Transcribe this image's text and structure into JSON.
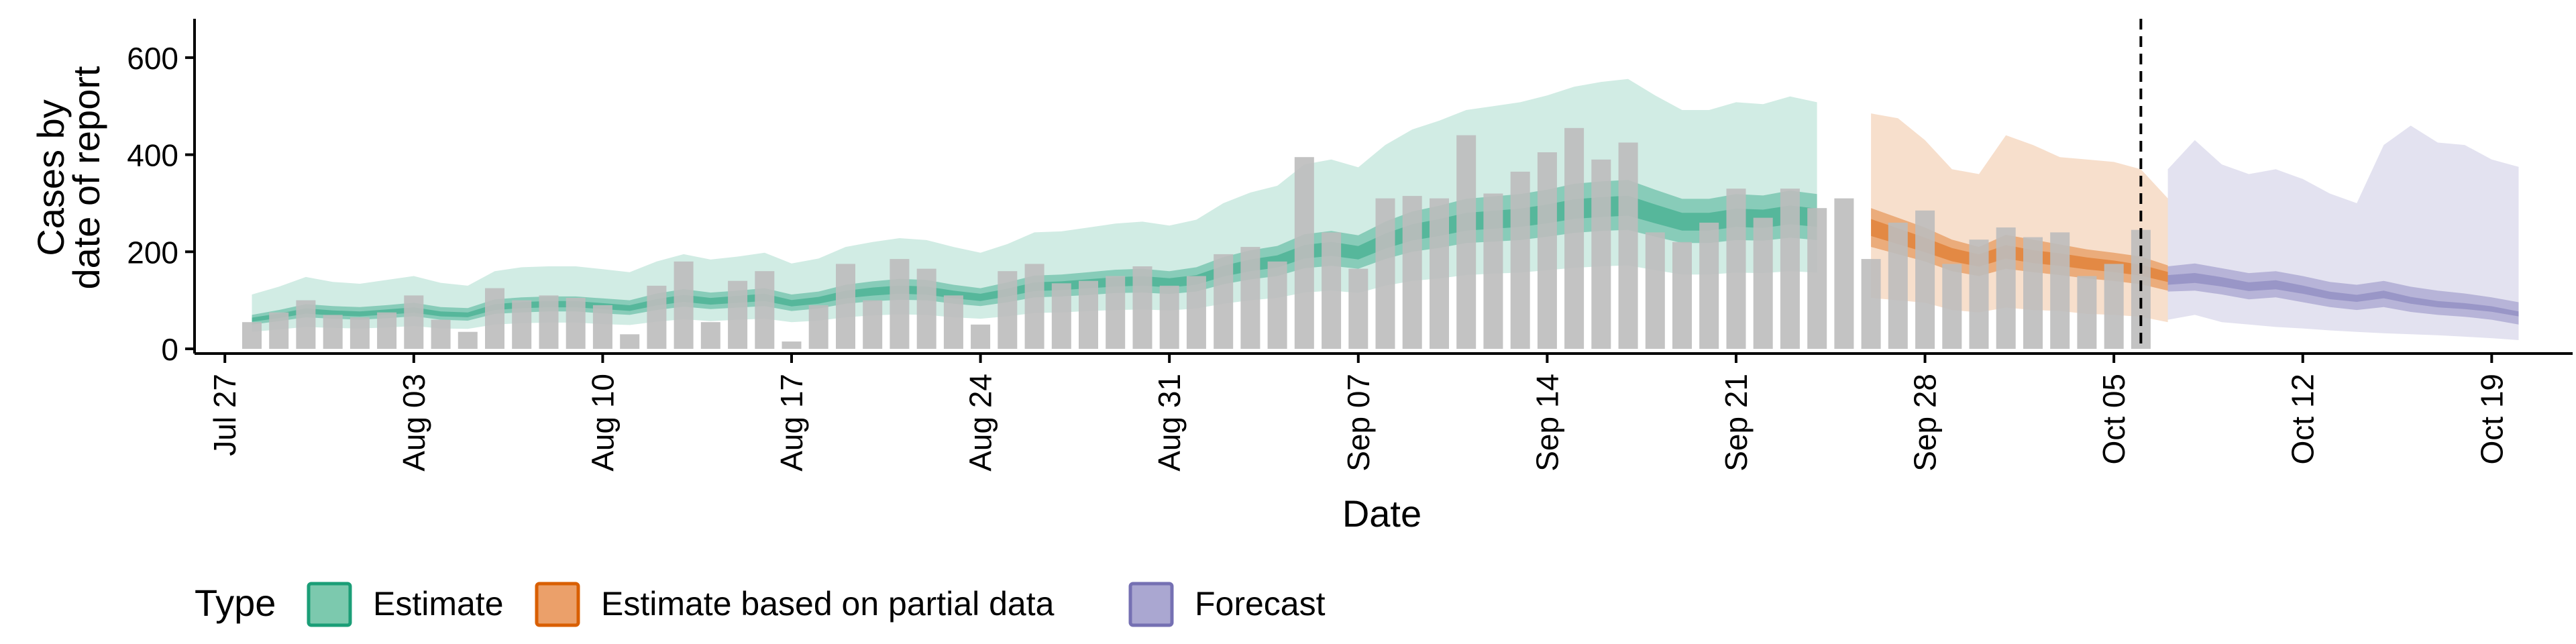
{
  "chart_data": {
    "type": "bar",
    "xlabel": "Date",
    "ylabel_lines": [
      "Cases by",
      "date of report"
    ],
    "ylim": [
      0,
      680
    ],
    "yticks": [
      0,
      200,
      400,
      600
    ],
    "x_date_range": [
      "2020-07-26",
      "2020-10-22"
    ],
    "xticks": [
      {
        "date": "2020-07-27",
        "label": "Jul 27"
      },
      {
        "date": "2020-08-03",
        "label": "Aug 03"
      },
      {
        "date": "2020-08-10",
        "label": "Aug 10"
      },
      {
        "date": "2020-08-17",
        "label": "Aug 17"
      },
      {
        "date": "2020-08-24",
        "label": "Aug 24"
      },
      {
        "date": "2020-08-31",
        "label": "Aug 31"
      },
      {
        "date": "2020-09-07",
        "label": "Sep 07"
      },
      {
        "date": "2020-09-14",
        "label": "Sep 14"
      },
      {
        "date": "2020-09-21",
        "label": "Sep 21"
      },
      {
        "date": "2020-09-28",
        "label": "Sep 28"
      },
      {
        "date": "2020-10-05",
        "label": "Oct 05"
      },
      {
        "date": "2020-10-12",
        "label": "Oct 12"
      },
      {
        "date": "2020-10-19",
        "label": "Oct 19"
      }
    ],
    "vline_date": "2020-10-06",
    "bars": {
      "start_date": "2020-07-28",
      "color": "#bdbdbd",
      "values": [
        55,
        75,
        100,
        70,
        65,
        75,
        110,
        60,
        35,
        125,
        100,
        110,
        105,
        90,
        30,
        130,
        180,
        55,
        140,
        160,
        15,
        90,
        175,
        100,
        185,
        165,
        110,
        50,
        160,
        175,
        135,
        140,
        150,
        170,
        130,
        150,
        195,
        210,
        180,
        395,
        240,
        165,
        310,
        315,
        310,
        440,
        320,
        365,
        405,
        455,
        390,
        425,
        240,
        220,
        260,
        330,
        270,
        330,
        290,
        310,
        185,
        260,
        285,
        175,
        225,
        250,
        230,
        240,
        150,
        175,
        245
      ]
    },
    "legend": {
      "title": "Type",
      "position": "bottom",
      "items": [
        {
          "label": "Estimate",
          "fill": "#7cc9ae",
          "stroke": "#1b9e77"
        },
        {
          "label": "Estimate based on partial data",
          "fill": "#eba06a",
          "stroke": "#d95f02"
        },
        {
          "label": "Forecast",
          "fill": "#aaa7d1",
          "stroke": "#7570b3"
        }
      ]
    },
    "series": [
      {
        "name": "Estimate",
        "color": "#1b9e77",
        "start_date": "2020-07-28",
        "median": [
          60,
          68,
          78,
          74,
          72,
          76,
          80,
          72,
          70,
          86,
          90,
          92,
          92,
          88,
          84,
          96,
          104,
          98,
          102,
          106,
          94,
          100,
          112,
          118,
          122,
          120,
          112,
          106,
          116,
          128,
          130,
          134,
          138,
          140,
          136,
          142,
          160,
          172,
          180,
          200,
          206,
          198,
          222,
          240,
          250,
          262,
          266,
          270,
          278,
          288,
          292,
          295,
          278,
          262,
          262,
          270,
          268,
          276,
          270
        ],
        "q25_75": [
          [
            50,
            70
          ],
          [
            57,
            80
          ],
          [
            65,
            92
          ],
          [
            62,
            88
          ],
          [
            60,
            86
          ],
          [
            63,
            90
          ],
          [
            67,
            95
          ],
          [
            60,
            86
          ],
          [
            58,
            84
          ],
          [
            72,
            102
          ],
          [
            75,
            106
          ],
          [
            77,
            108
          ],
          [
            77,
            108
          ],
          [
            73,
            104
          ],
          [
            70,
            100
          ],
          [
            80,
            114
          ],
          [
            87,
            123
          ],
          [
            82,
            116
          ],
          [
            85,
            120
          ],
          [
            88,
            125
          ],
          [
            78,
            112
          ],
          [
            83,
            118
          ],
          [
            93,
            132
          ],
          [
            98,
            139
          ],
          [
            101,
            144
          ],
          [
            100,
            142
          ],
          [
            93,
            132
          ],
          [
            88,
            125
          ],
          [
            96,
            137
          ],
          [
            106,
            151
          ],
          [
            108,
            153
          ],
          [
            111,
            158
          ],
          [
            115,
            163
          ],
          [
            116,
            165
          ],
          [
            113,
            160
          ],
          [
            118,
            168
          ],
          [
            133,
            189
          ],
          [
            143,
            203
          ],
          [
            150,
            212
          ],
          [
            166,
            236
          ],
          [
            171,
            243
          ],
          [
            165,
            234
          ],
          [
            185,
            262
          ],
          [
            200,
            283
          ],
          [
            208,
            295
          ],
          [
            218,
            309
          ],
          [
            221,
            314
          ],
          [
            224,
            319
          ],
          [
            231,
            328
          ],
          [
            239,
            340
          ],
          [
            243,
            345
          ],
          [
            245,
            348
          ],
          [
            231,
            328
          ],
          [
            218,
            309
          ],
          [
            218,
            309
          ],
          [
            224,
            319
          ],
          [
            223,
            316
          ],
          [
            229,
            326
          ],
          [
            224,
            319
          ]
        ],
        "q5_95": [
          [
            35,
            112
          ],
          [
            40,
            128
          ],
          [
            45,
            148
          ],
          [
            43,
            138
          ],
          [
            42,
            134
          ],
          [
            44,
            142
          ],
          [
            47,
            150
          ],
          [
            42,
            136
          ],
          [
            41,
            130
          ],
          [
            50,
            160
          ],
          [
            53,
            168
          ],
          [
            54,
            170
          ],
          [
            54,
            170
          ],
          [
            51,
            164
          ],
          [
            49,
            158
          ],
          [
            56,
            180
          ],
          [
            61,
            195
          ],
          [
            57,
            184
          ],
          [
            60,
            190
          ],
          [
            62,
            198
          ],
          [
            55,
            176
          ],
          [
            58,
            186
          ],
          [
            65,
            210
          ],
          [
            69,
            220
          ],
          [
            71,
            228
          ],
          [
            70,
            224
          ],
          [
            65,
            210
          ],
          [
            62,
            198
          ],
          [
            67,
            216
          ],
          [
            74,
            240
          ],
          [
            75,
            242
          ],
          [
            78,
            250
          ],
          [
            80,
            258
          ],
          [
            81,
            262
          ],
          [
            79,
            254
          ],
          [
            83,
            266
          ],
          [
            93,
            300
          ],
          [
            100,
            322
          ],
          [
            105,
            336
          ],
          [
            116,
            380
          ],
          [
            120,
            390
          ],
          [
            115,
            374
          ],
          [
            130,
            420
          ],
          [
            140,
            452
          ],
          [
            145,
            470
          ],
          [
            152,
            492
          ],
          [
            155,
            500
          ],
          [
            157,
            508
          ],
          [
            162,
            522
          ],
          [
            167,
            540
          ],
          [
            170,
            550
          ],
          [
            172,
            556
          ],
          [
            162,
            522
          ],
          [
            153,
            492
          ],
          [
            153,
            492
          ],
          [
            157,
            508
          ],
          [
            156,
            504
          ],
          [
            160,
            520
          ],
          [
            157,
            508
          ]
        ]
      },
      {
        "name": "Estimate based on partial data",
        "color": "#d95f02",
        "start_date": "2020-09-26",
        "median": [
          250,
          232,
          214,
          194,
          182,
          200,
          190,
          184,
          176,
          170,
          162,
          148
        ],
        "q25_75": [
          [
            210,
            290
          ],
          [
            195,
            270
          ],
          [
            180,
            250
          ],
          [
            160,
            225
          ],
          [
            150,
            210
          ],
          [
            165,
            235
          ],
          [
            158,
            225
          ],
          [
            152,
            215
          ],
          [
            145,
            205
          ],
          [
            140,
            198
          ],
          [
            133,
            190
          ],
          [
            120,
            172
          ]
        ],
        "q5_95": [
          [
            105,
            485
          ],
          [
            100,
            475
          ],
          [
            95,
            430
          ],
          [
            80,
            370
          ],
          [
            75,
            360
          ],
          [
            85,
            440
          ],
          [
            80,
            420
          ],
          [
            78,
            395
          ],
          [
            72,
            390
          ],
          [
            70,
            385
          ],
          [
            66,
            370
          ],
          [
            55,
            310
          ]
        ]
      },
      {
        "name": "Forecast",
        "color": "#7570b3",
        "start_date": "2020-10-07",
        "median": [
          142,
          146,
          138,
          128,
          132,
          122,
          110,
          104,
          112,
          100,
          92,
          88,
          82,
          72
        ],
        "q25_75": [
          [
            118,
            170
          ],
          [
            120,
            176
          ],
          [
            112,
            166
          ],
          [
            102,
            156
          ],
          [
            106,
            160
          ],
          [
            96,
            150
          ],
          [
            86,
            138
          ],
          [
            80,
            132
          ],
          [
            86,
            140
          ],
          [
            76,
            128
          ],
          [
            70,
            120
          ],
          [
            66,
            114
          ],
          [
            60,
            106
          ],
          [
            50,
            96
          ]
        ],
        "q5_95": [
          [
            60,
            370
          ],
          [
            70,
            430
          ],
          [
            55,
            380
          ],
          [
            50,
            360
          ],
          [
            45,
            370
          ],
          [
            42,
            350
          ],
          [
            38,
            320
          ],
          [
            35,
            300
          ],
          [
            32,
            420
          ],
          [
            30,
            460
          ],
          [
            28,
            425
          ],
          [
            25,
            420
          ],
          [
            22,
            390
          ],
          [
            18,
            375
          ]
        ]
      }
    ]
  }
}
